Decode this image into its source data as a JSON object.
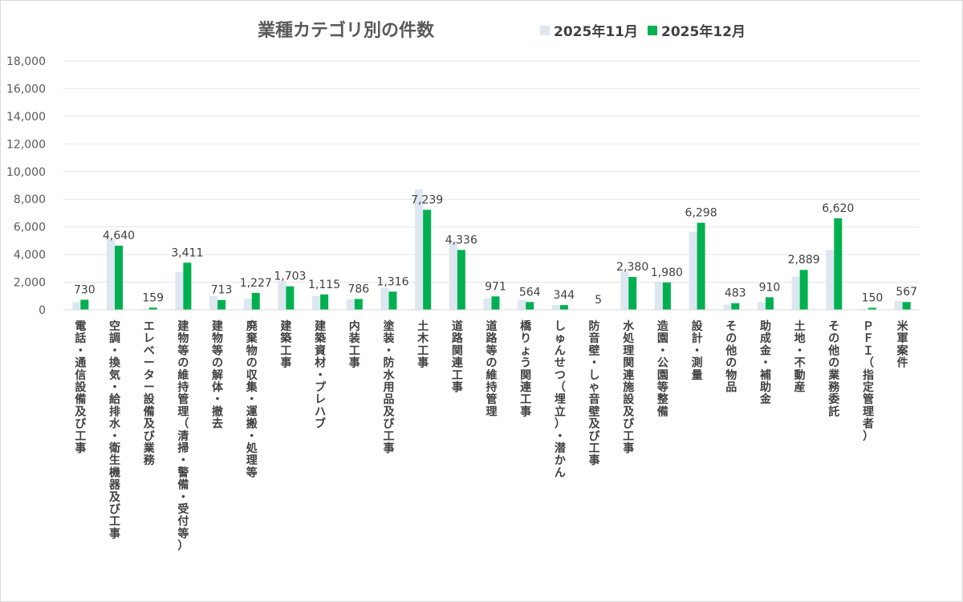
{
  "chart_data": {
    "type": "bar",
    "title": "業種カテゴリ別の件数",
    "xlabel": "",
    "ylabel": "",
    "ylim": [
      0,
      18000
    ],
    "yticks": [
      "0",
      "2,000",
      "4,000",
      "6,000",
      "8,000",
      "10,000",
      "12,000",
      "14,000",
      "16,000",
      "18,000"
    ],
    "grid": true,
    "legend_position": "top-right",
    "categories": [
      "電話・通信設備及び工事",
      "空調・換気・給排水・衛生機器及び工事",
      "エレベーター設備及び業務",
      "建物等の維持管理（清掃・警備・受付等）",
      "建物等の解体・撤去",
      "廃棄物の収集・運搬・処理等",
      "建築工事",
      "建築資材・プレハブ",
      "内装工事",
      "塗装・防水用品及び工事",
      "土木工事",
      "道路関連工事",
      "道路等の維持管理",
      "橋りょう関連工事",
      "しゅんせつ（埋立）・潜かん",
      "防音壁・しゃ音壁及び工事",
      "水処理関連施設及び工事",
      "造園・公園等整備",
      "設計・測量",
      "その他の物品",
      "助成金・補助金",
      "土地・不動産",
      "その他の業務委託",
      "ＰＦＩ（指定管理者）",
      "米軍案件"
    ],
    "series": [
      {
        "name": "2025年11月",
        "color": "#dde7f1",
        "values": [
          560,
          5100,
          60,
          2750,
          1000,
          800,
          2100,
          1000,
          760,
          1600,
          8700,
          4950,
          820,
          700,
          350,
          5,
          2800,
          2000,
          5650,
          380,
          550,
          2400,
          4330,
          60,
          640
        ]
      },
      {
        "name": "2025年12月",
        "color": "#00b050",
        "values": [
          730,
          4640,
          159,
          3411,
          713,
          1227,
          1703,
          1115,
          786,
          1316,
          7239,
          4336,
          971,
          564,
          344,
          5,
          2380,
          1980,
          6298,
          483,
          910,
          2889,
          6620,
          150,
          567
        ]
      }
    ],
    "data_labels": [
      "730",
      "4,640",
      "159",
      "3,411",
      "713",
      "1,227",
      "1,703",
      "1,115",
      "786",
      "1,316",
      "7,239",
      "4,336",
      "971",
      "564",
      "344",
      "5",
      "2,380",
      "1,980",
      "6,298",
      "483",
      "910",
      "2,889",
      "6,620",
      "150",
      "567"
    ]
  }
}
